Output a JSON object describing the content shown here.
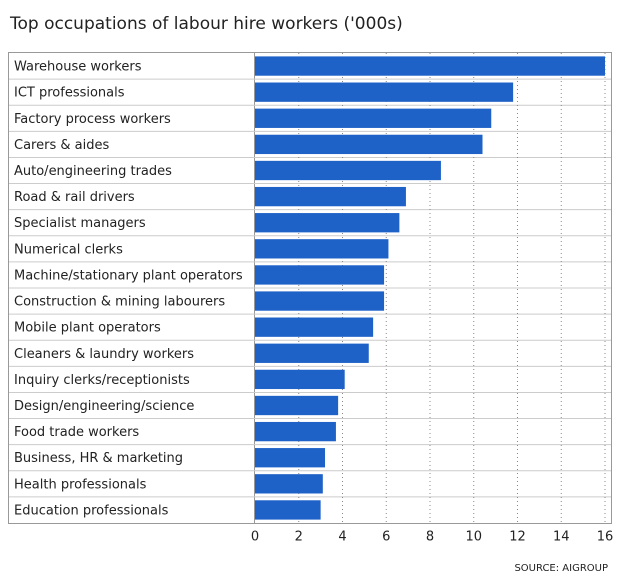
{
  "chart_data": {
    "type": "bar",
    "orientation": "horizontal",
    "title": "Top occupations of labour hire workers ('000s)",
    "source": "SOURCE: AIGROUP",
    "categories": [
      "Warehouse workers",
      "ICT professionals",
      "Factory process workers",
      "Carers & aides",
      "Auto/engineering trades",
      "Road & rail drivers",
      "Specialist managers",
      "Numerical clerks",
      "Machine/stationary plant operators",
      "Construction & mining labourers",
      "Mobile plant operators",
      "Cleaners & laundry workers",
      "Inquiry clerks/receptionists",
      "Design/engineering/science",
      "Food trade workers",
      "Business, HR & marketing",
      "Health professionals",
      "Education professionals"
    ],
    "values": [
      16.0,
      11.8,
      10.8,
      10.4,
      8.5,
      6.9,
      6.6,
      6.1,
      5.9,
      5.9,
      5.4,
      5.2,
      4.1,
      3.8,
      3.7,
      3.2,
      3.1,
      3.0
    ],
    "color": "#1f62c7",
    "xlim": [
      0,
      16
    ],
    "xticks": [
      0,
      2,
      4,
      6,
      8,
      10,
      12,
      14,
      16
    ],
    "grid": true
  }
}
